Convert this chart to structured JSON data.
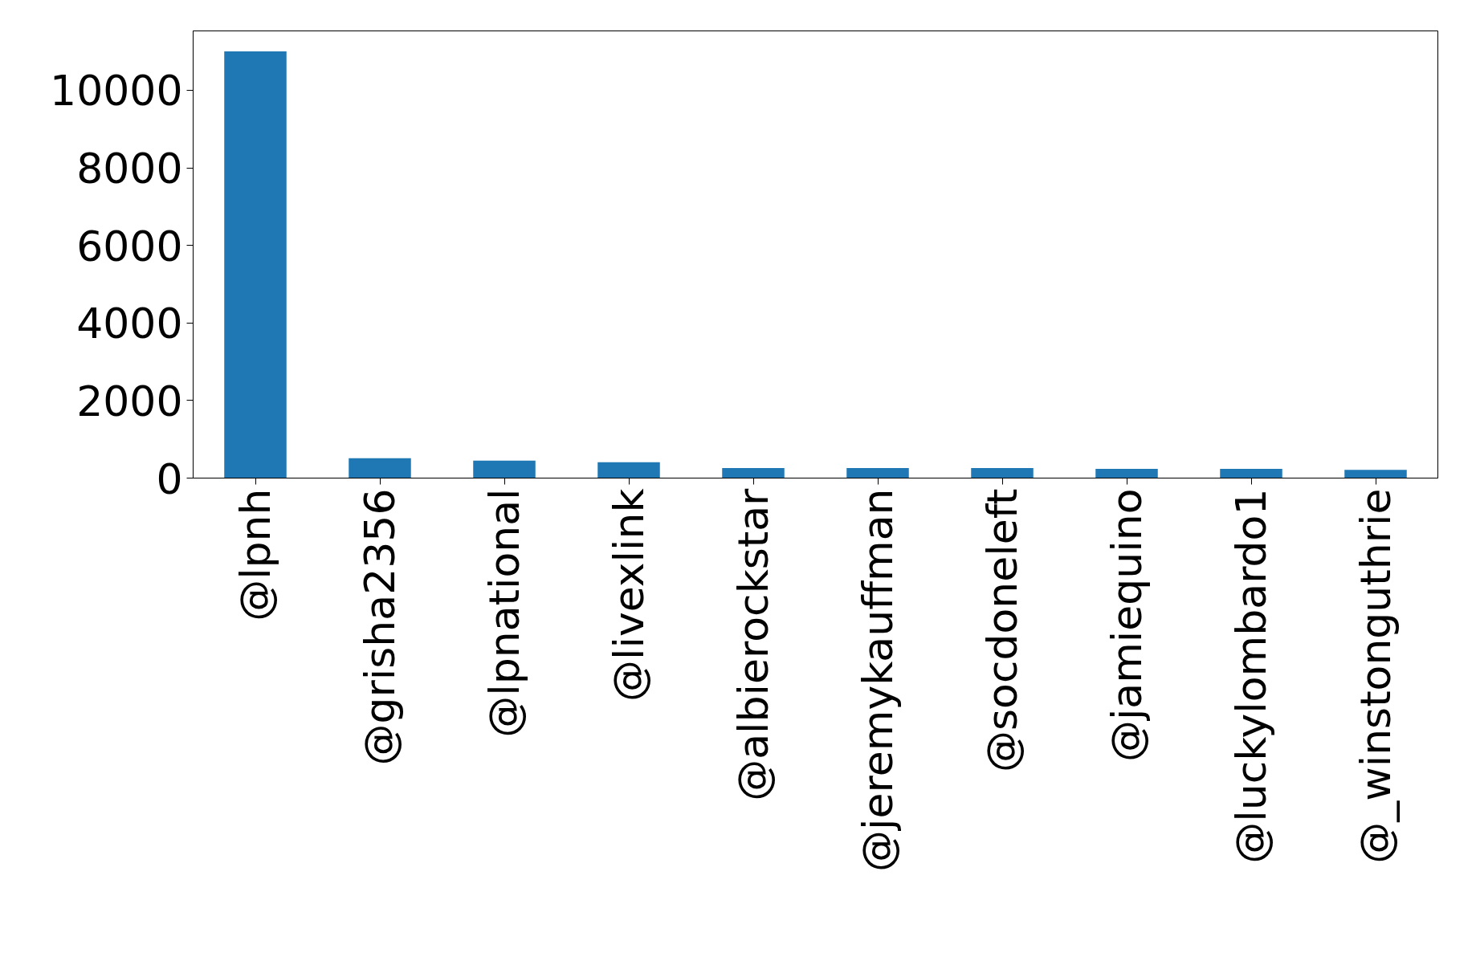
{
  "chart_data": {
    "type": "bar",
    "categories": [
      "@lpnh",
      "@grisha2356",
      "@lpnational",
      "@livexlink",
      "@albierockstar",
      "@jeremykauffman",
      "@socdoneleft",
      "@jamiequino",
      "@luckylombardo1",
      "@_winstonguthrie"
    ],
    "values": [
      11000,
      510,
      450,
      410,
      260,
      260,
      260,
      240,
      240,
      210
    ],
    "color": "#1f77b4",
    "ylim": [
      0,
      11530
    ],
    "yticks": [
      0,
      2000,
      4000,
      6000,
      8000,
      10000
    ],
    "grid": false
  }
}
